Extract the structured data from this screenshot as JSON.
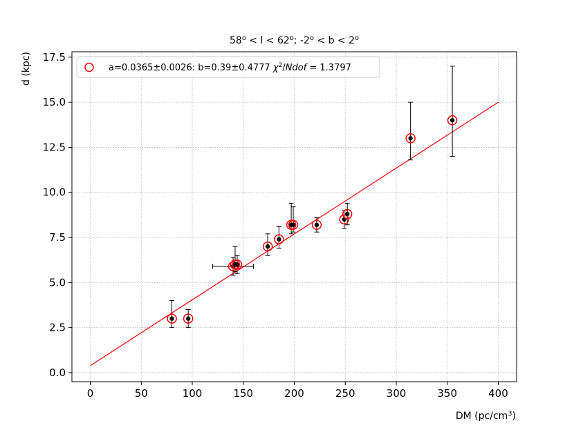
{
  "chart_data": {
    "type": "scatter",
    "title": {
      "parts": [
        {
          "t": "58"
        },
        {
          "t": "o",
          "sup": true
        },
        {
          "t": " < l < 62"
        },
        {
          "t": "o",
          "sup": true
        },
        {
          "t": "; -2"
        },
        {
          "t": "o",
          "sup": true
        },
        {
          "t": " < b < 2"
        },
        {
          "t": "o",
          "sup": true
        }
      ]
    },
    "xlabel": {
      "parts": [
        {
          "t": "DM (pc/cm"
        },
        {
          "t": "3",
          "sup": true
        },
        {
          "t": ")"
        }
      ]
    },
    "ylabel": "d (kpc)",
    "xlim": [
      -18,
      418
    ],
    "ylim": [
      -0.5,
      17.8
    ],
    "xticks": [
      0,
      50,
      100,
      150,
      200,
      250,
      300,
      350,
      400
    ],
    "yticks": [
      0.0,
      2.5,
      5.0,
      7.5,
      10.0,
      12.5,
      15.0,
      17.5
    ],
    "xtick_labels": [
      "0",
      "50",
      "100",
      "150",
      "200",
      "250",
      "300",
      "350",
      "400"
    ],
    "ytick_labels": [
      "0.0",
      "2.5",
      "5.0",
      "7.5",
      "10.0",
      "12.5",
      "15.0",
      "17.5"
    ],
    "grid": true,
    "legend_position": "top-left",
    "legend": {
      "text": "a=0.0365±0.0026: b=0.39±0.4777",
      "chi_parts": [
        {
          "t": "χ",
          "italic": true
        },
        {
          "t": "2",
          "sup": true
        },
        {
          "t": "/"
        },
        {
          "t": "Ndof",
          "italic": true
        },
        {
          "t": " = 1.3797"
        }
      ]
    },
    "colors": {
      "marker_edge": "#ff0000",
      "point": "#000000",
      "error_bar": "#000000",
      "fit_line": "#ff0000",
      "grid": "#b0b0b0"
    },
    "fit_line": {
      "x": [
        0,
        400
      ],
      "y": [
        0.39,
        15.0
      ]
    },
    "points": [
      {
        "x": 80,
        "y": 3.0,
        "yerr_low": 0.5,
        "yerr_high": 1.0
      },
      {
        "x": 96,
        "y": 3.0,
        "yerr_low": 0.5,
        "yerr_high": 0.5
      },
      {
        "x": 140,
        "y": 5.9,
        "yerr_low": 0.5,
        "yerr_high": 0.5,
        "xerr_low": 20,
        "xerr_high": 20
      },
      {
        "x": 142,
        "y": 6.0,
        "yerr_low": 0.4,
        "yerr_high": 1.0
      },
      {
        "x": 144,
        "y": 6.0,
        "yerr_low": 0.5,
        "yerr_high": 0.5
      },
      {
        "x": 174,
        "y": 7.0,
        "yerr_low": 0.5,
        "yerr_high": 0.7
      },
      {
        "x": 185,
        "y": 7.4,
        "yerr_low": 0.5,
        "yerr_high": 0.7
      },
      {
        "x": 197,
        "y": 8.2,
        "yerr_low": 0.5,
        "yerr_high": 1.2
      },
      {
        "x": 199,
        "y": 8.2,
        "yerr_low": 0.4,
        "yerr_high": 1.0
      },
      {
        "x": 222,
        "y": 8.2,
        "yerr_low": 0.4,
        "yerr_high": 0.4
      },
      {
        "x": 249,
        "y": 8.5,
        "yerr_low": 0.5,
        "yerr_high": 0.5
      },
      {
        "x": 252,
        "y": 8.8,
        "yerr_low": 0.6,
        "yerr_high": 0.6
      },
      {
        "x": 314,
        "y": 13.0,
        "yerr_low": 1.2,
        "yerr_high": 2.0
      },
      {
        "x": 355,
        "y": 14.0,
        "yerr_low": 2.0,
        "yerr_high": 3.0
      }
    ]
  }
}
